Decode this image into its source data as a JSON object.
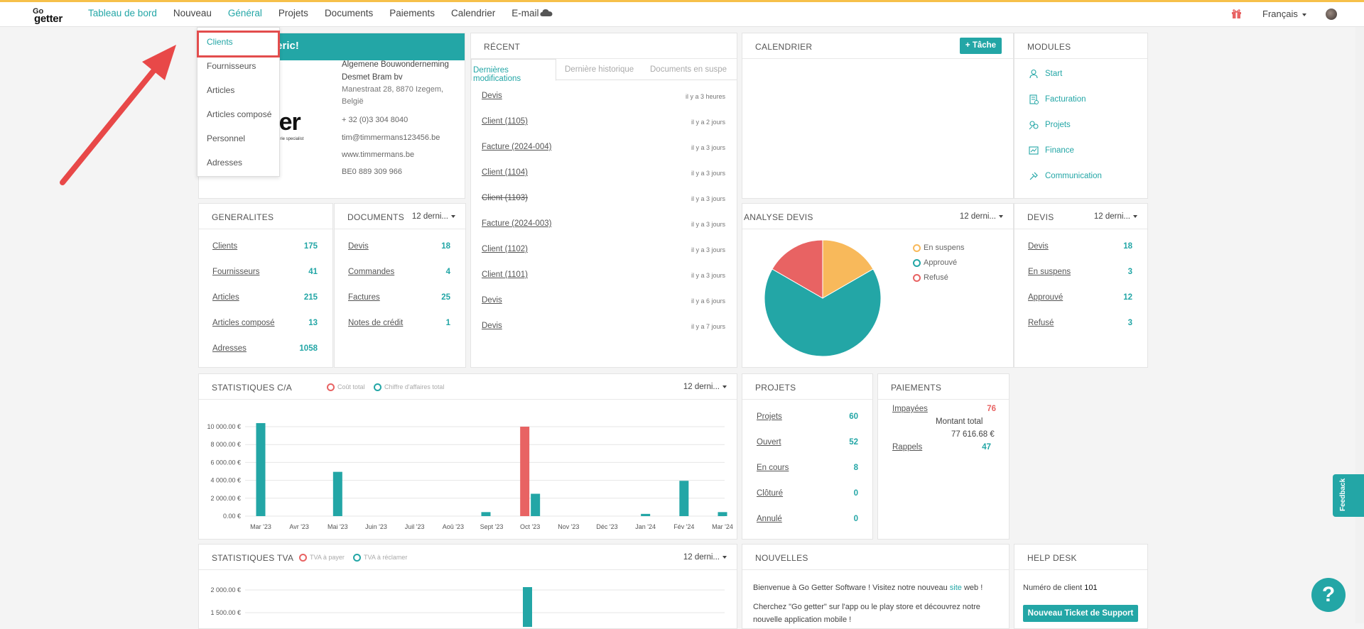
{
  "nav": {
    "items": [
      "Tableau de bord",
      "Nouveau",
      "Général",
      "Projets",
      "Documents",
      "Paiements",
      "Calendrier",
      "E-mail"
    ],
    "active_index": 0,
    "highlight_index": 2,
    "language": "Français"
  },
  "logo": {
    "top": "Go",
    "bottom": "getter"
  },
  "dropdown": {
    "items": [
      "Clients",
      "Fournisseurs",
      "Articles",
      "Articles composé",
      "Personnel",
      "Adresses"
    ]
  },
  "company": {
    "welcome": "deric!",
    "name1": "Algemene Bouwonderneming",
    "name2": "Desmet Bram bv",
    "address1": "Manestraat 28, 8870 Izegem,",
    "address2": "België",
    "phone": "+ 32 (0)3 304 8040",
    "email": "tim@timmermans123456.be",
    "web": "www.timmermans.be",
    "vat": "BE0 889 309 966",
    "logo_text": "tter",
    "logo_sub": "nuiserie specialist"
  },
  "recent": {
    "title": "RÉCENT",
    "tabs": [
      "Dernières modifications",
      "Dernière historique",
      "Documents en suspe"
    ],
    "items": [
      {
        "label": "Devis",
        "time": "il y a 3 heures"
      },
      {
        "label": "Client (1105)",
        "time": "il y a 2 jours"
      },
      {
        "label": "Facture (2024-004)",
        "time": "il y a 3 jours"
      },
      {
        "label": "Client (1104)",
        "time": "il y a 3 jours"
      },
      {
        "label": "Client (1103)",
        "time": "il y a 3 jours"
      },
      {
        "label": "Facture (2024-003)",
        "time": "il y a 3 jours"
      },
      {
        "label": "Client (1102)",
        "time": "il y a 3 jours"
      },
      {
        "label": "Client (1101)",
        "time": "il y a 3 jours"
      },
      {
        "label": "Devis",
        "time": "il y a 6 jours"
      },
      {
        "label": "Devis",
        "time": "il y a 7 jours"
      }
    ]
  },
  "calendar": {
    "title": "CALENDRIER",
    "button": "+ Tâche"
  },
  "modules": {
    "title": "MODULES",
    "items": [
      "Start",
      "Facturation",
      "Projets",
      "Finance",
      "Communication"
    ]
  },
  "generalites": {
    "title": "GENERALITES",
    "items": [
      {
        "label": "Clients",
        "value": "175"
      },
      {
        "label": "Fournisseurs",
        "value": "41"
      },
      {
        "label": "Articles",
        "value": "215"
      },
      {
        "label": "Articles composé",
        "value": "13"
      },
      {
        "label": "Adresses",
        "value": "1058"
      }
    ]
  },
  "documents": {
    "title": "DOCUMENTS",
    "period": "12 derni...",
    "items": [
      {
        "label": "Devis",
        "value": "18"
      },
      {
        "label": "Commandes",
        "value": "4"
      },
      {
        "label": "Factures",
        "value": "25"
      },
      {
        "label": "Notes de crédit",
        "value": "1"
      }
    ]
  },
  "analyse": {
    "title": "ANALYSE DEVIS",
    "period": "12 derni...",
    "legend": [
      "En suspens",
      "Approuvé",
      "Refusé"
    ]
  },
  "devis": {
    "title": "DEVIS",
    "period": "12 derni...",
    "items": [
      {
        "label": "Devis",
        "value": "18"
      },
      {
        "label": "En suspens",
        "value": "3"
      },
      {
        "label": "Approuvé",
        "value": "12"
      },
      {
        "label": "Refusé",
        "value": "3"
      }
    ]
  },
  "stats_ca": {
    "title": "STATISTIQUES C/A",
    "period": "12 derni...",
    "legend": [
      "Coût total",
      "Chiffre d'affaires total"
    ]
  },
  "projets": {
    "title": "PROJETS",
    "items": [
      {
        "label": "Projets",
        "value": "60"
      },
      {
        "label": "Ouvert",
        "value": "52"
      },
      {
        "label": "En cours",
        "value": "8"
      },
      {
        "label": "Clôturé",
        "value": "0"
      },
      {
        "label": "Annulé",
        "value": "0"
      }
    ]
  },
  "paiements": {
    "title": "PAIEMENTS",
    "impayees_label": "Impayées",
    "impayees_value": "76",
    "montant_label": "Montant total",
    "montant_value": "77 616.68 €",
    "rappels_label": "Rappels",
    "rappels_value": "47"
  },
  "stats_tva": {
    "title": "STATISTIQUES TVA",
    "period": "12 derni...",
    "legend": [
      "TVA à payer",
      "TVA à réclamer"
    ]
  },
  "nouvelles": {
    "title": "NOUVELLES",
    "line1a": "Bienvenue à Go Getter Software ! Visitez notre nouveau ",
    "line1link": "site",
    "line1b": " web !",
    "line2": "Cherchez \"Go getter\" sur l'app ou le play store et découvrez notre",
    "line3": "nouvelle application mobile !"
  },
  "helpdesk": {
    "title": "HELP DESK",
    "client_label": "Numéro de client",
    "client_number": "101",
    "button": "Nouveau Ticket de Support"
  },
  "feedback": "Feedback",
  "help": "?",
  "colors": {
    "teal": "#23a6a6",
    "red": "#e86363",
    "orange": "#f8b95b",
    "yellow_top": "#f6c04a"
  },
  "chart_data": [
    {
      "type": "pie",
      "title": "ANALYSE DEVIS",
      "labels": [
        "En suspens",
        "Approuvé",
        "Refusé"
      ],
      "values": [
        3,
        12,
        3
      ],
      "colors": [
        "#f8b95b",
        "#23a6a6",
        "#e86363"
      ]
    },
    {
      "type": "bar",
      "title": "STATISTIQUES C/A",
      "categories": [
        "Mar '23",
        "Avr '23",
        "Mai '23",
        "Juin '23",
        "Juil '23",
        "Aoû '23",
        "Sept '23",
        "Oct '23",
        "Nov '23",
        "Déc '23",
        "Jan '24",
        "Fév '24",
        "Mar '24"
      ],
      "series": [
        {
          "name": "Coût total",
          "color": "#e86363",
          "values": [
            0,
            0,
            0,
            0,
            0,
            0,
            0,
            10000,
            0,
            0,
            0,
            0,
            0
          ]
        },
        {
          "name": "Chiffre d'affaires total",
          "color": "#23a6a6",
          "values": [
            10400,
            0,
            4950,
            0,
            0,
            0,
            450,
            2500,
            0,
            0,
            250,
            3950,
            450
          ]
        }
      ],
      "yticks": [
        "0.00 €",
        "2 000.00 €",
        "4 000.00 €",
        "6 000.00 €",
        "8 000.00 €",
        "10 000.00 €"
      ],
      "ylim": [
        0,
        10000
      ]
    },
    {
      "type": "bar",
      "title": "STATISTIQUES TVA",
      "series": [
        {
          "name": "TVA à payer",
          "color": "#e86363",
          "values": []
        },
        {
          "name": "TVA à réclamer",
          "color": "#23a6a6",
          "values": []
        }
      ],
      "yticks": [
        "1 500.00 €",
        "2 000.00 €"
      ]
    }
  ]
}
